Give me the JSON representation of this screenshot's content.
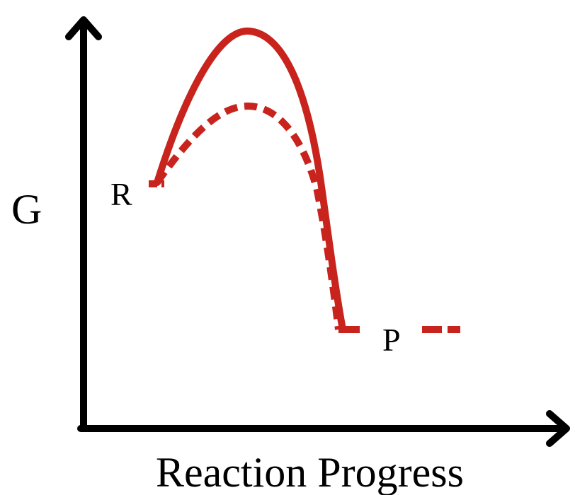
{
  "diagram": {
    "y_axis_label": "G",
    "x_axis_label": "Reaction Progress",
    "reactant_label": "R",
    "product_label": "P"
  },
  "colors": {
    "axis": "#000000",
    "curve": "#c8231c",
    "background": "#ffffff"
  },
  "curves": [
    {
      "style": "solid"
    },
    {
      "style": "dashed"
    }
  ]
}
